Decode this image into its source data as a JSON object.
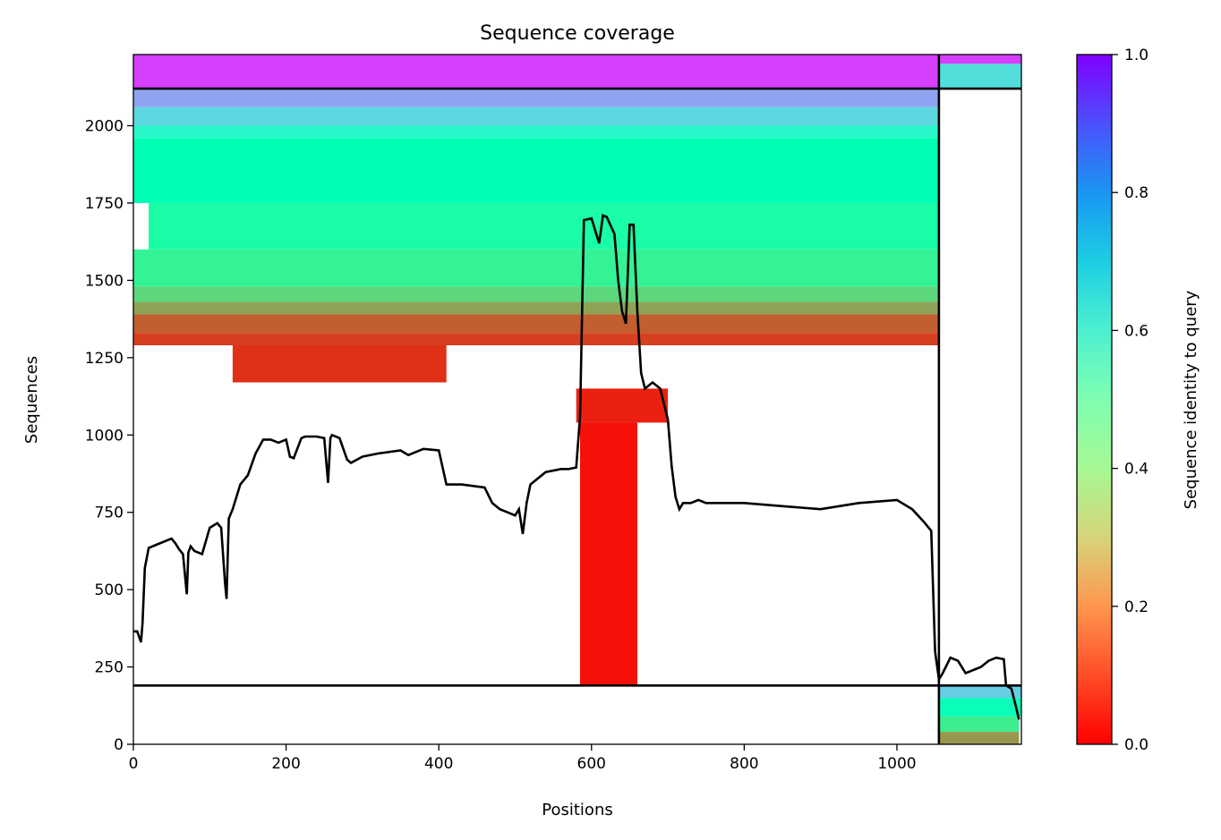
{
  "chart_data": {
    "type": "heatmap",
    "title": "Sequence coverage",
    "xlabel": "Positions",
    "ylabel": "Sequences",
    "colorbar_label": "Sequence identity to query",
    "colormap": "rainbow_r",
    "xlim": [
      0,
      1163
    ],
    "ylim": [
      0,
      2230
    ],
    "x_ticks": [
      0,
      200,
      400,
      600,
      800,
      1000
    ],
    "y_ticks": [
      0,
      250,
      500,
      750,
      1000,
      1250,
      1500,
      1750,
      2000
    ],
    "colorbar_ticks": [
      0.0,
      0.2,
      0.4,
      0.6,
      0.8,
      1.0
    ],
    "colorbar_tick_labels": [
      "0.0",
      "0.2",
      "0.4",
      "0.6",
      "0.8",
      "1.0"
    ],
    "x_tick_labels": [
      "0",
      "200",
      "400",
      "600",
      "800",
      "1000"
    ],
    "y_tick_labels": [
      "0",
      "250",
      "500",
      "750",
      "1000",
      "1250",
      "1500",
      "1750",
      "2000"
    ],
    "chain_boundaries": {
      "x": 1055,
      "y_lower": 190,
      "y_upper": 2120
    },
    "identity_bands_chain1": [
      {
        "from": 2120,
        "to": 2230,
        "x0": 0,
        "x1": 1055,
        "identity": 0.92
      },
      {
        "from": 2060,
        "to": 2120,
        "x0": 0,
        "x1": 1055,
        "identity": 0.78
      },
      {
        "from": 2000,
        "to": 2060,
        "x0": 0,
        "x1": 1055,
        "identity": 0.68
      },
      {
        "from": 1960,
        "to": 2000,
        "x0": 0,
        "x1": 1055,
        "identity": 0.58
      },
      {
        "from": 1750,
        "to": 1960,
        "x0": 0,
        "x1": 1055,
        "identity": 0.5
      },
      {
        "from": 1600,
        "to": 1750,
        "x0": 20,
        "x1": 1055,
        "identity": 0.45
      },
      {
        "from": 1480,
        "to": 1600,
        "x0": 0,
        "x1": 1055,
        "identity": 0.4
      },
      {
        "from": 1430,
        "to": 1480,
        "x0": 0,
        "x1": 1055,
        "identity": 0.32
      },
      {
        "from": 1390,
        "to": 1430,
        "x0": 0,
        "x1": 1055,
        "identity": 0.22
      },
      {
        "from": 1330,
        "to": 1390,
        "x0": 0,
        "x1": 1055,
        "identity": 0.12
      },
      {
        "from": 1290,
        "to": 1330,
        "x0": 0,
        "x1": 1055,
        "identity": 0.08
      },
      {
        "from": 1170,
        "to": 1290,
        "x0": 130,
        "x1": 410,
        "identity": 0.06
      },
      {
        "from": 1040,
        "to": 1150,
        "x0": 580,
        "x1": 700,
        "identity": 0.04
      },
      {
        "from": 190,
        "to": 1040,
        "x0": 585,
        "x1": 660,
        "identity": 0.02
      }
    ],
    "identity_bands_chain2": [
      {
        "from": 2200,
        "to": 2230,
        "x0": 1055,
        "x1": 1163,
        "identity": 0.92
      },
      {
        "from": 2120,
        "to": 2200,
        "x0": 1055,
        "x1": 1163,
        "identity": 0.66
      },
      {
        "from": 150,
        "to": 190,
        "x0": 1055,
        "x1": 1163,
        "identity": 0.7
      },
      {
        "from": 90,
        "to": 150,
        "x0": 1055,
        "x1": 1163,
        "identity": 0.52
      },
      {
        "from": 40,
        "to": 90,
        "x0": 1055,
        "x1": 1160,
        "identity": 0.38
      },
      {
        "from": 0,
        "to": 40,
        "x0": 1055,
        "x1": 1160,
        "identity": 0.2
      }
    ],
    "coverage_line": {
      "x": [
        0,
        5,
        10,
        12,
        15,
        20,
        30,
        50,
        55,
        60,
        65,
        70,
        72,
        75,
        80,
        90,
        100,
        110,
        115,
        120,
        122,
        125,
        130,
        135,
        140,
        150,
        160,
        170,
        180,
        190,
        200,
        205,
        210,
        220,
        225,
        240,
        250,
        255,
        258,
        260,
        270,
        280,
        285,
        300,
        320,
        350,
        360,
        380,
        400,
        410,
        430,
        460,
        470,
        480,
        490,
        500,
        505,
        510,
        515,
        520,
        540,
        560,
        570,
        580,
        585,
        590,
        600,
        610,
        615,
        620,
        630,
        635,
        640,
        645,
        650,
        655,
        660,
        665,
        670,
        675,
        680,
        690,
        700,
        705,
        710,
        715,
        720,
        730,
        740,
        750,
        770,
        800,
        850,
        900,
        950,
        1000,
        1020,
        1035,
        1045,
        1050,
        1055,
        1060,
        1070,
        1080,
        1090,
        1100,
        1110,
        1120,
        1130,
        1140,
        1143,
        1150,
        1155,
        1160
      ],
      "y": [
        365,
        365,
        330,
        390,
        570,
        635,
        645,
        665,
        650,
        630,
        615,
        485,
        620,
        640,
        625,
        615,
        700,
        715,
        700,
        520,
        470,
        730,
        760,
        800,
        840,
        870,
        940,
        985,
        985,
        975,
        985,
        930,
        925,
        990,
        995,
        995,
        990,
        845,
        990,
        1000,
        990,
        920,
        910,
        930,
        940,
        950,
        935,
        955,
        950,
        840,
        840,
        830,
        780,
        760,
        750,
        740,
        760,
        680,
        780,
        840,
        880,
        890,
        890,
        895,
        1060,
        1695,
        1700,
        1620,
        1710,
        1705,
        1650,
        1500,
        1400,
        1360,
        1680,
        1680,
        1400,
        1200,
        1150,
        1160,
        1170,
        1150,
        1050,
        900,
        800,
        760,
        780,
        780,
        790,
        780,
        780,
        780,
        770,
        760,
        780,
        790,
        760,
        720,
        690,
        300,
        210,
        230,
        280,
        270,
        230,
        240,
        250,
        270,
        280,
        275,
        190,
        180,
        130,
        80
      ]
    }
  }
}
